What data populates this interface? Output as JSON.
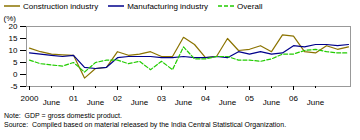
{
  "chart_data": {
    "type": "line",
    "ylabel": "(%)",
    "categories": [
      "2000",
      null,
      "June",
      null,
      "01",
      null,
      "June",
      null,
      "02",
      null,
      "June",
      null,
      "03",
      null,
      "June",
      null,
      "04",
      null,
      "June",
      null,
      "05",
      null,
      "June",
      null,
      "06",
      null,
      "June",
      null,
      null,
      null
    ],
    "series": [
      {
        "name": "Construction industry",
        "color": "#8B7300",
        "values": [
          11.0,
          9.5,
          8.5,
          8.2,
          8.0,
          -1.5,
          2.5,
          3.0,
          9.5,
          8.0,
          8.5,
          9.5,
          7.5,
          7.5,
          15.5,
          12.5,
          7.0,
          7.5,
          15.0,
          10.0,
          10.5,
          12.0,
          9.5,
          16.5,
          16.0,
          9.5,
          9.0,
          12.0,
          10.5,
          11.5
        ]
      },
      {
        "name": "Manufacturing industry",
        "color": "#00008B",
        "values": [
          9.0,
          8.5,
          8.0,
          7.5,
          8.0,
          3.0,
          2.5,
          3.0,
          7.0,
          7.5,
          7.5,
          7.5,
          7.0,
          7.0,
          7.5,
          7.0,
          7.0,
          7.5,
          7.0,
          9.5,
          8.5,
          9.5,
          8.5,
          9.0,
          12.0,
          11.5,
          12.5,
          12.5,
          12.0,
          12.5
        ]
      },
      {
        "name": "Overall",
        "color": "#22CC00",
        "line_style": "dashed",
        "values": [
          6.0,
          4.5,
          4.0,
          3.5,
          5.0,
          1.0,
          5.0,
          6.0,
          6.0,
          4.5,
          5.5,
          2.0,
          5.5,
          2.0,
          11.5,
          6.5,
          6.5,
          7.5,
          7.5,
          6.0,
          6.0,
          5.5,
          6.5,
          8.5,
          8.5,
          10.0,
          10.5,
          9.5,
          9.0,
          9.0
        ]
      }
    ],
    "ylim": [
      -5,
      20
    ],
    "yticks": [
      -5,
      0,
      5,
      10,
      15,
      20
    ],
    "legend": "upper left",
    "annotations": [
      "Note:  GDP = gross domestic product.",
      "Source:  Compiled based on material released by the India Central Statistical Organization."
    ]
  }
}
